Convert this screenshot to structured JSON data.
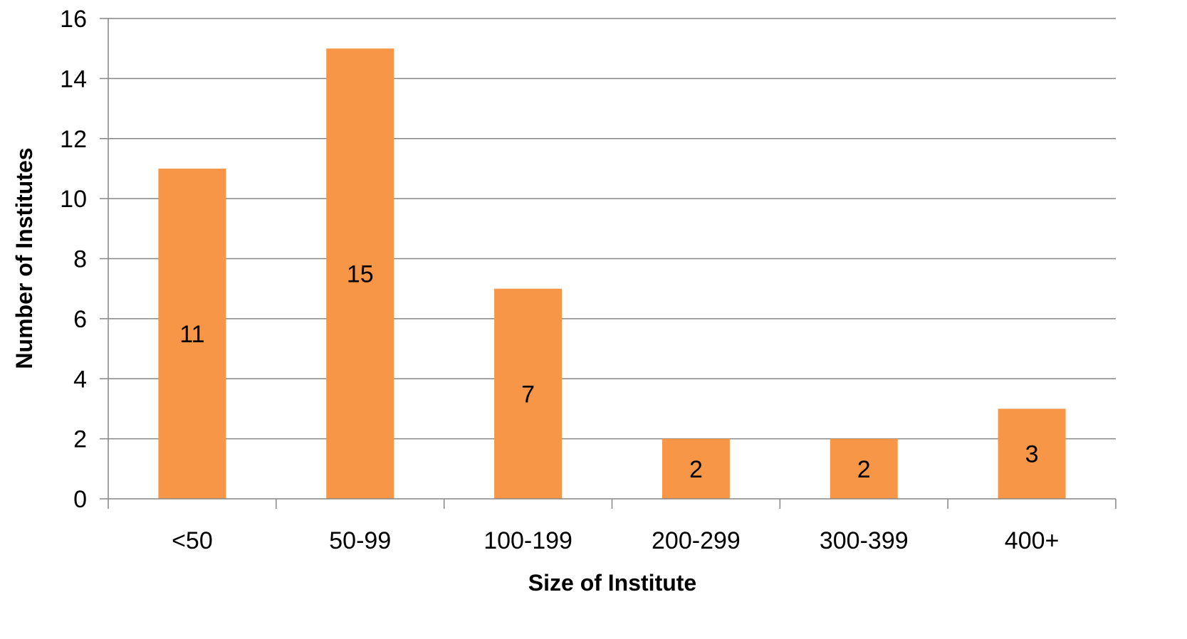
{
  "chart_data": {
    "type": "bar",
    "title": "",
    "xlabel": "Size of Institute",
    "ylabel": "Number of Institutes",
    "categories": [
      "<50",
      "50-99",
      "100-199",
      "200-299",
      "300-399",
      "400+"
    ],
    "values": [
      11,
      15,
      7,
      2,
      2,
      3
    ],
    "data_labels": [
      "11",
      "15",
      "7",
      "2",
      "2",
      "3"
    ],
    "ylim": [
      0,
      16
    ],
    "yticks": [
      0,
      2,
      4,
      6,
      8,
      10,
      12,
      14,
      16
    ],
    "grid": true,
    "legend": "none",
    "bar_color": "#F79646",
    "grid_color": "#868686",
    "axis_color": "#868686"
  }
}
